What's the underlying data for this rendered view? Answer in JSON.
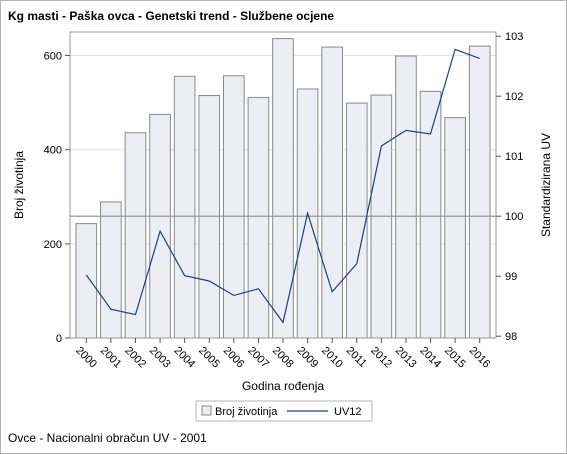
{
  "title": "Kg masti - Paška ovca - Genetski trend - Službene ocjene",
  "footnote": "Ovce - Nacionalni obračun UV - 2001",
  "chart_data": {
    "type": "bar",
    "categories": [
      "2000",
      "2001",
      "2002",
      "2003",
      "2004",
      "2005",
      "2006",
      "2007",
      "2008",
      "2009",
      "2010",
      "2011",
      "2012",
      "2013",
      "2014",
      "2015",
      "2016"
    ],
    "xlabel": "Godina rođenja",
    "ylabel": "Broj životinja",
    "y2label": "Standardizirana UV",
    "ylim": [
      0,
      650
    ],
    "yticks": [
      0,
      200,
      400,
      600
    ],
    "y2lim": [
      97.97,
      103.07
    ],
    "y2ticks": [
      98,
      99,
      100,
      101,
      102,
      103
    ],
    "reference_line_y2": 100,
    "series": [
      {
        "name": "Broj životinja",
        "type": "bar",
        "axis": "left",
        "color": "#eceef4",
        "stroke": "#8a8a8a",
        "values": [
          243,
          289,
          436,
          475,
          556,
          515,
          557,
          511,
          636,
          529,
          618,
          499,
          516,
          599,
          524,
          468,
          620
        ]
      },
      {
        "name": "UV12",
        "type": "line",
        "axis": "right",
        "color": "#1f3f8c",
        "values": [
          99.02,
          98.45,
          98.36,
          99.75,
          99.01,
          98.92,
          98.68,
          98.79,
          98.23,
          100.05,
          98.74,
          99.21,
          101.17,
          101.43,
          101.37,
          102.78,
          102.63
        ]
      }
    ],
    "legend_position": "bottom-center",
    "grid": true
  }
}
